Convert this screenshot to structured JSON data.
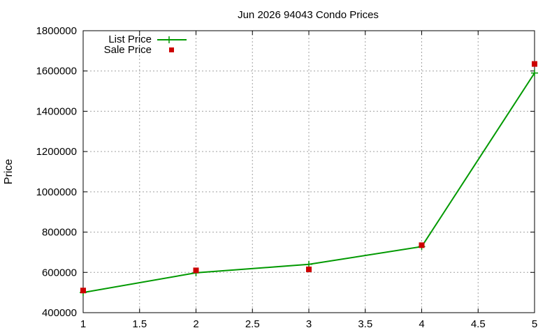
{
  "chart_data": {
    "type": "line",
    "title": "Jun 2026 94043 Condo Prices",
    "xlabel": "",
    "ylabel": "Price",
    "x": [
      1,
      2,
      3,
      4,
      5
    ],
    "xlim": [
      1,
      5
    ],
    "ylim": [
      400000,
      1800000
    ],
    "x_ticks": [
      "1",
      "1.5",
      "2",
      "2.5",
      "3",
      "3.5",
      "4",
      "4.5",
      "5"
    ],
    "y_ticks": [
      "400000",
      "600000",
      "800000",
      "1000000",
      "1200000",
      "1400000",
      "1600000",
      "1800000"
    ],
    "grid": true,
    "legend_position": "top-left",
    "series": [
      {
        "name": "List Price",
        "style": "line-with-plus-markers",
        "color": "#009900",
        "values": [
          500000,
          598000,
          640000,
          728000,
          1590000
        ]
      },
      {
        "name": "Sale Price",
        "style": "square-markers",
        "color": "#cc0000",
        "values": [
          510000,
          610000,
          615000,
          735000,
          1635000
        ]
      }
    ]
  }
}
